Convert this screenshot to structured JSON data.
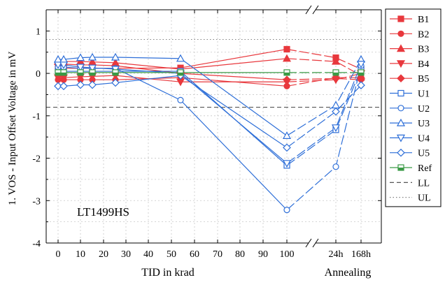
{
  "chart_data": {
    "type": "line",
    "annotation": "LT1499HS",
    "xlabel_left": "TID in krad",
    "xlabel_right": "Annealing",
    "ylabel": "1. VOS - Input Offset Voltage in mV",
    "ylim": [
      -4,
      1.5
    ],
    "y_ticks": [
      "1",
      "0",
      "-1",
      "-2",
      "-3",
      "-4"
    ],
    "x_tick_labels": [
      "0",
      "10",
      "20",
      "30",
      "40",
      "50",
      "60",
      "70",
      "80",
      "90",
      "100",
      "24h",
      "168h"
    ],
    "grid": true,
    "x_categories": [
      "0",
      "3",
      "10",
      "15",
      "25",
      "53",
      "100",
      "24h",
      "168h"
    ],
    "limits": [
      {
        "name": "LL",
        "value": -0.8,
        "color": "#404040"
      },
      {
        "name": "UL",
        "value": 0.8,
        "color": "#808080"
      }
    ],
    "series": [
      {
        "name": "B1",
        "color": "#e8383d",
        "marker": "square-filled",
        "values": [
          0.12,
          0.12,
          0.12,
          0.12,
          0.12,
          0.13,
          0.57,
          0.37,
          0.1
        ]
      },
      {
        "name": "B2",
        "color": "#e8383d",
        "marker": "circle-filled",
        "values": [
          -0.15,
          -0.15,
          -0.15,
          -0.15,
          -0.15,
          -0.1,
          -0.3,
          -0.1,
          -0.1
        ]
      },
      {
        "name": "B3",
        "color": "#e8383d",
        "marker": "triangle-up-filled",
        "values": [
          0.28,
          0.28,
          0.28,
          0.27,
          0.25,
          0.1,
          0.35,
          0.28,
          -0.05
        ]
      },
      {
        "name": "B4",
        "color": "#e8383d",
        "marker": "triangle-down-filled",
        "values": [
          -0.1,
          -0.1,
          -0.08,
          -0.07,
          -0.05,
          -0.2,
          -0.2,
          -0.15,
          0.0
        ]
      },
      {
        "name": "B5",
        "color": "#e8383d",
        "marker": "diamond-filled",
        "values": [
          0.22,
          0.22,
          0.2,
          0.2,
          0.18,
          0.0,
          -0.15,
          -0.12,
          -0.15
        ]
      },
      {
        "name": "U1",
        "color": "#2e6fd8",
        "marker": "square-open",
        "values": [
          0.05,
          0.05,
          0.05,
          0.05,
          0.05,
          0.05,
          -2.17,
          -1.33,
          0.1
        ]
      },
      {
        "name": "U2",
        "color": "#2e6fd8",
        "marker": "circle-open",
        "values": [
          0.15,
          0.15,
          0.12,
          0.12,
          0.12,
          -0.63,
          -3.22,
          -2.2,
          0.18
        ]
      },
      {
        "name": "U3",
        "color": "#2e6fd8",
        "marker": "triangle-up-open",
        "values": [
          0.33,
          0.33,
          0.37,
          0.38,
          0.38,
          0.35,
          -1.47,
          -0.75,
          0.33
        ]
      },
      {
        "name": "U4",
        "color": "#2e6fd8",
        "marker": "triangle-down-open",
        "values": [
          0.2,
          0.2,
          0.15,
          0.13,
          0.1,
          0.0,
          -2.12,
          -1.28,
          0.22
        ]
      },
      {
        "name": "U5",
        "color": "#2e6fd8",
        "marker": "diamond-open",
        "values": [
          -0.3,
          -0.3,
          -0.27,
          -0.27,
          -0.22,
          -0.05,
          -1.75,
          -0.9,
          -0.28
        ]
      },
      {
        "name": "Ref",
        "color": "#3a9a45",
        "marker": "square-half",
        "values": [
          0.02,
          0.02,
          0.02,
          0.02,
          0.02,
          0.02,
          0.02,
          0.02,
          0.02
        ]
      }
    ]
  }
}
